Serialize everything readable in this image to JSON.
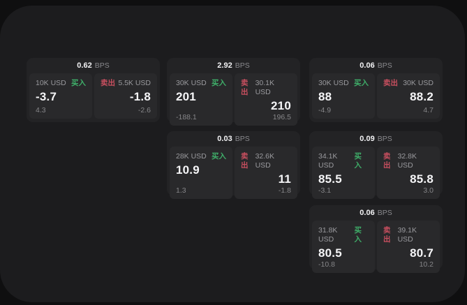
{
  "labels": {
    "bps_unit": "BPS",
    "buy": "买入",
    "sell": "卖出"
  },
  "colors": {
    "buy_green": "#3fae69",
    "sell_red": "#c84f5f",
    "page_bg": "#0f0f10",
    "window_bg": "#1c1c1e",
    "card_bg": "#232325",
    "subcard_bg": "#29292b",
    "value_text": "#f5f5f7",
    "muted_text": "#8a8a8e"
  },
  "cards": [
    {
      "bps": "0.62",
      "buy": {
        "amount": "10K USD",
        "value": "-3.7",
        "delta": "4.3"
      },
      "sell": {
        "amount": "5.5K USD",
        "value": "-1.8",
        "delta": "-2.6"
      }
    },
    {
      "bps": "2.92",
      "buy": {
        "amount": "30K USD",
        "value": "201",
        "delta": "-188.1"
      },
      "sell": {
        "amount": "30.1K USD",
        "value": "210",
        "delta": "196.5"
      }
    },
    {
      "bps": "0.06",
      "buy": {
        "amount": "30K USD",
        "value": "88",
        "delta": "-4.9"
      },
      "sell": {
        "amount": "30K USD",
        "value": "88.2",
        "delta": "4.7"
      }
    },
    {
      "bps": "0.03",
      "buy": {
        "amount": "28K USD",
        "value": "10.9",
        "delta": "1.3"
      },
      "sell": {
        "amount": "32.6K USD",
        "value": "11",
        "delta": "-1.8"
      }
    },
    {
      "bps": "0.09",
      "buy": {
        "amount": "34.1K USD",
        "value": "85.5",
        "delta": "-3.1"
      },
      "sell": {
        "amount": "32.8K USD",
        "value": "85.8",
        "delta": "3.0"
      }
    },
    {
      "bps": "0.06",
      "buy": {
        "amount": "31.8K USD",
        "value": "80.5",
        "delta": "-10.8"
      },
      "sell": {
        "amount": "39.1K USD",
        "value": "80.7",
        "delta": "10.2"
      }
    }
  ]
}
